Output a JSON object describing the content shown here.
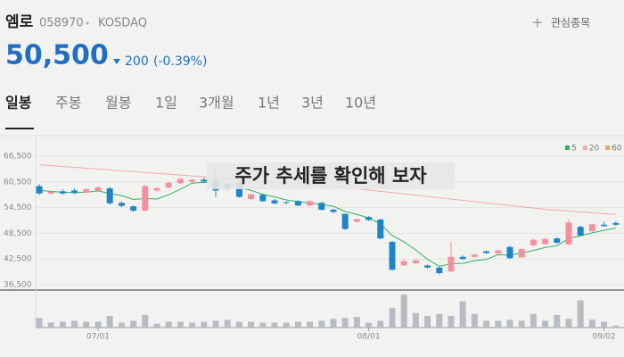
{
  "header": {
    "name": "엠로",
    "code": "058970",
    "market": "KOSDAQ",
    "watch": "관심종목",
    "price": "50,500",
    "change": "200",
    "change_pct": "(-0.39%)"
  },
  "tabs": [
    "일봉",
    "주봉",
    "월봉",
    "1일",
    "3개월",
    "1년",
    "3년",
    "10년"
  ],
  "overlay": "주가 추세를 확인해 보자",
  "chart_data": {
    "type": "candlestick",
    "categories": [
      null,
      null,
      null,
      null,
      null,
      "07/01",
      null,
      null,
      null,
      null,
      null,
      null,
      null,
      null,
      null,
      null,
      null,
      null,
      null,
      null,
      null,
      null,
      null,
      null,
      null,
      null,
      null,
      null,
      "08/01",
      null,
      null,
      null,
      null,
      null,
      null,
      null,
      null,
      null,
      null,
      null,
      null,
      null,
      null,
      null,
      null,
      null,
      null,
      null,
      "09/02",
      null
    ],
    "open": [
      59500,
      57800,
      58300,
      58500,
      58000,
      58500,
      59000,
      55600,
      54800,
      53800,
      58500,
      59200,
      60200,
      60500,
      61000,
      61000,
      60000,
      60300,
      56500,
      57500,
      56200,
      55800,
      56000,
      55000,
      55600,
      54000,
      53000,
      51200,
      52300,
      51700,
      46500,
      41000,
      41500,
      41000,
      40500,
      39600,
      43000,
      43000,
      44300,
      43800,
      45300,
      42900,
      45700,
      46000,
      47300,
      45900,
      50000,
      49000,
      50500,
      50900
    ],
    "high": [
      60000,
      58500,
      58800,
      59000,
      59000,
      59500,
      59300,
      55900,
      55000,
      59800,
      59300,
      60500,
      61400,
      61300,
      61500,
      63300,
      60300,
      60500,
      57800,
      57700,
      56500,
      56000,
      56200,
      56200,
      55800,
      54200,
      53200,
      52000,
      52500,
      51900,
      46700,
      42300,
      42400,
      41200,
      40800,
      46500,
      43300,
      43800,
      44500,
      44700,
      45600,
      45000,
      47300,
      47400,
      47500,
      51800,
      50300,
      50800,
      51200,
      51300
    ],
    "low": [
      57500,
      57500,
      57500,
      57600,
      57800,
      58200,
      55200,
      54600,
      53500,
      53600,
      58200,
      59000,
      60000,
      60300,
      60300,
      57000,
      58700,
      56800,
      56200,
      55800,
      55300,
      55300,
      54800,
      54800,
      53800,
      53200,
      49300,
      51000,
      51400,
      47100,
      39800,
      40800,
      41300,
      40300,
      38900,
      39400,
      42300,
      42800,
      43700,
      43600,
      42500,
      42700,
      45500,
      45800,
      46100,
      45700,
      47800,
      48800,
      50000,
      50300
    ],
    "close": [
      57800,
      58200,
      57800,
      57900,
      58800,
      59200,
      55500,
      54900,
      53800,
      59500,
      59000,
      60300,
      61200,
      61000,
      60600,
      58500,
      59000,
      57000,
      57600,
      56000,
      55500,
      55600,
      55000,
      56000,
      54000,
      53500,
      49500,
      51800,
      51600,
      47300,
      40000,
      42000,
      42200,
      40500,
      39200,
      43000,
      42500,
      43500,
      43900,
      44500,
      42700,
      44800,
      47000,
      47200,
      46300,
      51000,
      48000,
      50600,
      50200,
      50500
    ],
    "volume": [
      10,
      5,
      6,
      7,
      6,
      6,
      12,
      5,
      7,
      13,
      4,
      6,
      6,
      5,
      6,
      7,
      8,
      6,
      6,
      5,
      5,
      5,
      6,
      6,
      7,
      9,
      10,
      11,
      5,
      7,
      20,
      34,
      15,
      12,
      14,
      12,
      27,
      14,
      7,
      7,
      8,
      7,
      14,
      7,
      13,
      9,
      28,
      8,
      6,
      2
    ],
    "up_color": "#f2909e",
    "down_color": "#1f84c6",
    "volume_color": "#b8bcc2",
    "series": [
      {
        "name": "5",
        "color": "#2fb35a",
        "values": [
          58500,
          58300,
          58100,
          58000,
          58100,
          58400,
          57800,
          57300,
          56400,
          56600,
          56500,
          57500,
          58800,
          60200,
          60400,
          60300,
          60100,
          59200,
          58500,
          57600,
          57000,
          56300,
          55900,
          55600,
          55200,
          54800,
          53600,
          52900,
          52100,
          50700,
          48000,
          46500,
          44600,
          42400,
          40800,
          41400,
          41500,
          42100,
          42400,
          43500,
          43400,
          43900,
          44500,
          45200,
          45600,
          47300,
          47900,
          48600,
          49200,
          49700
        ]
      },
      {
        "name": "20",
        "color": "#f4a7b0",
        "values": [
          64500,
          64300,
          64100,
          63900,
          63700,
          63500,
          63300,
          63100,
          62900,
          62700,
          62500,
          62300,
          62100,
          61900,
          61700,
          61500,
          61300,
          61100,
          60900,
          60700,
          60500,
          60300,
          60100,
          59900,
          59700,
          59500,
          59200,
          58900,
          58600,
          58300,
          58000,
          57700,
          57400,
          57100,
          56800,
          56500,
          56200,
          55900,
          55600,
          55300,
          55000,
          54700,
          54400,
          54100,
          53900,
          53700,
          53500,
          53300,
          53100,
          52900
        ]
      },
      {
        "name": "60",
        "color": "#e9a66a",
        "values": [
          null,
          null,
          null,
          null,
          null,
          null,
          null,
          null,
          null,
          null,
          null,
          null,
          null,
          null,
          null,
          null,
          null,
          null,
          null,
          null,
          null,
          null,
          null,
          null,
          null,
          null,
          null,
          null,
          null,
          null,
          null,
          null,
          null,
          null,
          null,
          null,
          null,
          null,
          null,
          null,
          null,
          null,
          null,
          null,
          null,
          null,
          null,
          null,
          null,
          null
        ]
      }
    ],
    "ylim": [
      36500,
      66500
    ],
    "yticks": [
      {
        "value": 66500,
        "label": "66,500"
      },
      {
        "value": 60500,
        "label": "60,500"
      },
      {
        "value": 54500,
        "label": "54,500"
      },
      {
        "value": 48500,
        "label": "48,500"
      },
      {
        "value": 42500,
        "label": "42,500"
      },
      {
        "value": 36500,
        "label": "36,500"
      }
    ]
  }
}
